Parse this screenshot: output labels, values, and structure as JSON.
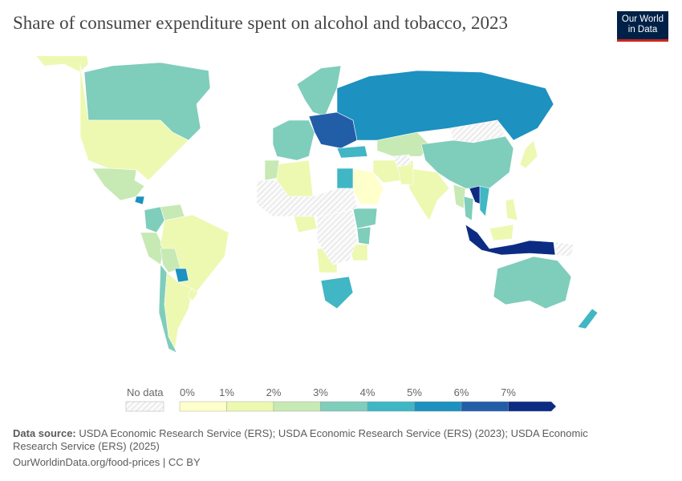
{
  "title": "Share of consumer expenditure spent on alcohol and tobacco, 2023",
  "logo": {
    "line1": "Our World",
    "line2": "in Data"
  },
  "legend": {
    "no_data_label": "No data",
    "ticks": [
      "0%",
      "1%",
      "2%",
      "3%",
      "4%",
      "5%",
      "6%",
      "7%"
    ],
    "bin_colors": [
      "#ffffcc",
      "#edf8b1",
      "#c7e9b4",
      "#7fcdbb",
      "#41b6c4",
      "#1d91c0",
      "#225ea8",
      "#0c2c84"
    ],
    "no_data_color": "#e8e8e8"
  },
  "chart_data": {
    "type": "choropleth",
    "title": "Share of consumer expenditure spent on alcohol and tobacco, 2023",
    "unit": "%",
    "bins": [
      0,
      1,
      2,
      3,
      4,
      5,
      6,
      7
    ],
    "regions": [
      {
        "name": "Canada",
        "value": 3.5
      },
      {
        "name": "Alaska (United States)",
        "value": 1.5
      },
      {
        "name": "United States",
        "value": 1.5
      },
      {
        "name": "Greenland",
        "value": null
      },
      {
        "name": "Mexico",
        "value": 2.5
      },
      {
        "name": "Guatemala",
        "value": 5.5
      },
      {
        "name": "Colombia",
        "value": 3.5
      },
      {
        "name": "Venezuela",
        "value": 2.5
      },
      {
        "name": "Peru",
        "value": 2.5
      },
      {
        "name": "Brazil",
        "value": 1.5
      },
      {
        "name": "Bolivia",
        "value": 2.5
      },
      {
        "name": "Paraguay",
        "value": 5.5
      },
      {
        "name": "Chile",
        "value": 3.5
      },
      {
        "name": "Argentina",
        "value": 1.5
      },
      {
        "name": "Uruguay",
        "value": 1.5
      },
      {
        "name": "Scandinavia",
        "value": 3.5
      },
      {
        "name": "Western Europe",
        "value": 3.5
      },
      {
        "name": "Eastern Europe",
        "value": 6.5
      },
      {
        "name": "Russia",
        "value": 5.5
      },
      {
        "name": "Kazakhstan",
        "value": 2.5
      },
      {
        "name": "Turkey",
        "value": 4.5
      },
      {
        "name": "Iran",
        "value": 1.5
      },
      {
        "name": "Saudi Arabia",
        "value": 0.5
      },
      {
        "name": "Egypt",
        "value": 4.5
      },
      {
        "name": "Algeria",
        "value": 1.5
      },
      {
        "name": "Morocco",
        "value": 2.5
      },
      {
        "name": "Nigeria",
        "value": 1.5
      },
      {
        "name": "Ethiopia",
        "value": 3.5
      },
      {
        "name": "Kenya",
        "value": 3.5
      },
      {
        "name": "Tanzania",
        "value": 1.5
      },
      {
        "name": "Angola",
        "value": 1.5
      },
      {
        "name": "South Africa",
        "value": 4.5
      },
      {
        "name": "Central Africa",
        "value": null
      },
      {
        "name": "Sahara",
        "value": null
      },
      {
        "name": "India",
        "value": 1.5
      },
      {
        "name": "Pakistan",
        "value": 1.5
      },
      {
        "name": "Afghanistan",
        "value": null
      },
      {
        "name": "Mongolia",
        "value": null
      },
      {
        "name": "China",
        "value": 3.5
      },
      {
        "name": "Japan",
        "value": 1.5
      },
      {
        "name": "Myanmar",
        "value": 2.5
      },
      {
        "name": "Thailand",
        "value": 3.5
      },
      {
        "name": "Laos",
        "value": 7.5
      },
      {
        "name": "Vietnam",
        "value": 4.5
      },
      {
        "name": "Philippines",
        "value": 1.5
      },
      {
        "name": "Malaysia",
        "value": 1.5
      },
      {
        "name": "Indonesia",
        "value": 7.5
      },
      {
        "name": "Papua New Guinea",
        "value": null
      },
      {
        "name": "Australia",
        "value": 3.5
      },
      {
        "name": "New Zealand",
        "value": 4.5
      }
    ]
  },
  "source": {
    "label": "Data source:",
    "text": "USDA Economic Research Service (ERS); USDA Economic Research Service (ERS) (2023); USDA Economic Research Service (ERS) (2025)"
  },
  "footer": "OurWorldinData.org/food-prices | CC BY"
}
